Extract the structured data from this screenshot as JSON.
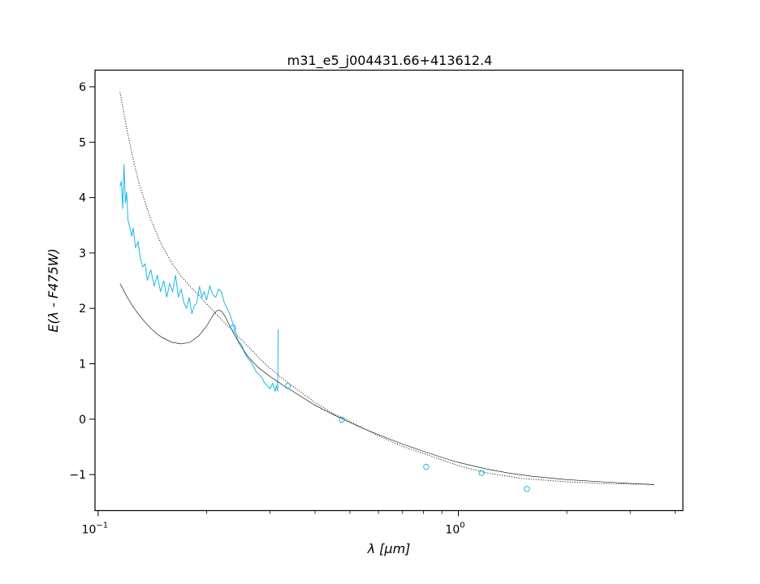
{
  "chart_data": {
    "type": "line",
    "title": "m31_e5_j004431.66+413612.4",
    "xlabel": "λ [μm]",
    "ylabel": "E(λ - F475W)",
    "xscale": "log",
    "xlim": [
      0.098,
      4.2
    ],
    "ylim": [
      -1.65,
      6.3
    ],
    "xticks": [
      {
        "value": 0.1,
        "base": "10",
        "exp": "−1"
      },
      {
        "value": 1.0,
        "base": "10",
        "exp": "0"
      }
    ],
    "yticks": [
      {
        "value": -1,
        "label": "−1"
      },
      {
        "value": 0,
        "label": "0"
      },
      {
        "value": 1,
        "label": "1"
      },
      {
        "value": 2,
        "label": "2"
      },
      {
        "value": 3,
        "label": "3"
      },
      {
        "value": 4,
        "label": "4"
      },
      {
        "value": 5,
        "label": "5"
      },
      {
        "value": 6,
        "label": "6"
      }
    ],
    "grid": false,
    "colors": {
      "spectrum": "#1ab8e8",
      "model_solid": "#000000",
      "model_dotted": "#000000"
    },
    "series": [
      {
        "style": "solid-cyan",
        "kind": "spectrum",
        "x": [
          0.115,
          0.116,
          0.117,
          0.118,
          0.119,
          0.12,
          0.121,
          0.122,
          0.123,
          0.124,
          0.125,
          0.127,
          0.129,
          0.131,
          0.133,
          0.135,
          0.137,
          0.14,
          0.143,
          0.146,
          0.149,
          0.152,
          0.155,
          0.158,
          0.161,
          0.164,
          0.167,
          0.17,
          0.173,
          0.176,
          0.179,
          0.182,
          0.185,
          0.188,
          0.191,
          0.194,
          0.197,
          0.2,
          0.204,
          0.208,
          0.212,
          0.216,
          0.22,
          0.224,
          0.228,
          0.232,
          0.236,
          0.24,
          0.245,
          0.25,
          0.255,
          0.26,
          0.265,
          0.27,
          0.275,
          0.28,
          0.285,
          0.29,
          0.295,
          0.3,
          0.305,
          0.31,
          0.312,
          0.314,
          0.315,
          0.316
        ],
        "y": [
          4.2,
          4.3,
          3.8,
          4.6,
          3.9,
          4.1,
          3.6,
          3.5,
          3.4,
          3.3,
          3.45,
          3.1,
          3.2,
          2.9,
          2.75,
          2.8,
          2.5,
          2.7,
          2.4,
          2.6,
          2.3,
          2.5,
          2.2,
          2.45,
          2.3,
          2.6,
          2.2,
          2.35,
          2.1,
          2.0,
          2.2,
          1.9,
          2.05,
          2.1,
          2.4,
          2.2,
          2.3,
          2.15,
          2.4,
          2.25,
          2.2,
          2.35,
          2.3,
          2.1,
          2.0,
          1.9,
          1.75,
          1.6,
          1.4,
          1.35,
          1.2,
          1.1,
          1.05,
          0.95,
          0.85,
          0.8,
          0.75,
          0.65,
          0.6,
          0.55,
          0.65,
          0.5,
          0.6,
          0.55,
          0.5,
          1.62
        ]
      },
      {
        "style": "solid-black-thin",
        "kind": "model",
        "x": [
          0.115,
          0.12,
          0.125,
          0.13,
          0.135,
          0.14,
          0.145,
          0.15,
          0.16,
          0.17,
          0.18,
          0.19,
          0.2,
          0.205,
          0.21,
          0.215,
          0.22,
          0.225,
          0.23,
          0.24,
          0.25,
          0.26,
          0.27,
          0.28,
          0.3,
          0.33,
          0.36,
          0.4,
          0.45,
          0.5,
          0.55,
          0.6,
          0.7,
          0.8,
          0.9,
          1.0,
          1.2,
          1.4,
          1.6,
          2.0,
          2.5,
          3.0,
          3.5
        ],
        "y": [
          2.45,
          2.22,
          2.03,
          1.88,
          1.75,
          1.64,
          1.55,
          1.48,
          1.39,
          1.36,
          1.39,
          1.5,
          1.68,
          1.8,
          1.91,
          1.97,
          1.95,
          1.86,
          1.73,
          1.5,
          1.3,
          1.14,
          1.02,
          0.92,
          0.77,
          0.59,
          0.44,
          0.25,
          0.08,
          -0.06,
          -0.18,
          -0.28,
          -0.45,
          -0.58,
          -0.69,
          -0.78,
          -0.9,
          -0.98,
          -1.03,
          -1.09,
          -1.13,
          -1.16,
          -1.18
        ]
      },
      {
        "style": "dotted-black",
        "kind": "model",
        "x": [
          0.115,
          0.12,
          0.125,
          0.13,
          0.14,
          0.15,
          0.16,
          0.17,
          0.18,
          0.19,
          0.2,
          0.22,
          0.24,
          0.26,
          0.28,
          0.3,
          0.33,
          0.36,
          0.4,
          0.45,
          0.5,
          0.6,
          0.7,
          0.8,
          1.0,
          1.2,
          1.5,
          2.0,
          2.5,
          3.0,
          3.5
        ],
        "y": [
          5.9,
          5.25,
          4.7,
          4.25,
          3.6,
          3.15,
          2.82,
          2.58,
          2.4,
          2.24,
          2.08,
          1.8,
          1.55,
          1.32,
          1.1,
          0.92,
          0.7,
          0.52,
          0.3,
          0.1,
          -0.04,
          -0.3,
          -0.49,
          -0.62,
          -0.84,
          -0.97,
          -1.07,
          -1.13,
          -1.16,
          -1.17,
          -1.18
        ]
      },
      {
        "style": "open-circle-cyan",
        "kind": "photometry",
        "x": [
          0.237,
          0.336,
          0.475,
          0.814,
          1.16,
          1.55
        ],
        "y": [
          1.65,
          0.6,
          -0.01,
          -0.86,
          -0.97,
          -1.26
        ]
      }
    ]
  }
}
